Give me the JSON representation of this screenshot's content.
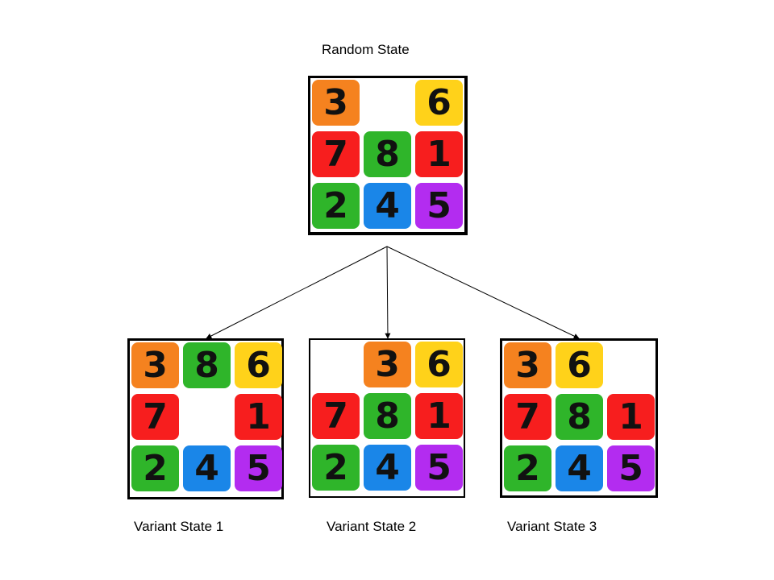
{
  "title": "Random State",
  "colors": {
    "orange": "#f5821f",
    "yellow": "#ffd21a",
    "red": "#f71e1e",
    "green": "#2fb52a",
    "blue": "#1a86e8",
    "purple": "#b32cf0"
  },
  "tile_colors": {
    "1": "red",
    "2": "green",
    "3": "orange",
    "4": "blue",
    "5": "purple",
    "6": "yellow",
    "7": "red",
    "8": "green"
  },
  "random_state": {
    "label": "Random State",
    "grid": [
      [
        3,
        0,
        6
      ],
      [
        7,
        8,
        1
      ],
      [
        2,
        4,
        5
      ]
    ]
  },
  "variants": [
    {
      "label": "Variant State 1",
      "grid": [
        [
          3,
          8,
          6
        ],
        [
          7,
          0,
          1
        ],
        [
          2,
          4,
          5
        ]
      ]
    },
    {
      "label": "Variant State 2",
      "grid": [
        [
          0,
          3,
          6
        ],
        [
          7,
          8,
          1
        ],
        [
          2,
          4,
          5
        ]
      ]
    },
    {
      "label": "Variant State 3",
      "grid": [
        [
          3,
          6,
          0
        ],
        [
          7,
          8,
          1
        ],
        [
          2,
          4,
          5
        ]
      ]
    }
  ]
}
